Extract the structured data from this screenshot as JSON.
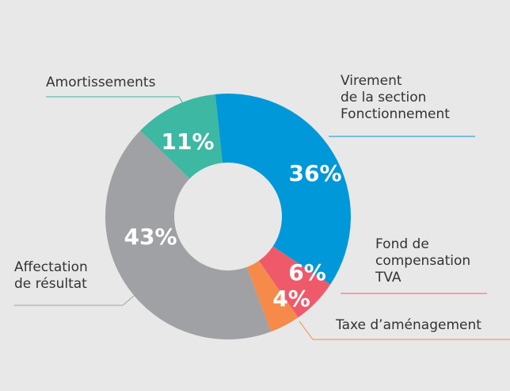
{
  "chart_data": {
    "type": "pie",
    "donut": true,
    "categories": [
      "Virement\nde la section\nFonctionnement",
      "Fond de\ncompensation\nTVA",
      "Taxe d’aménagement",
      "Affectation\nde résultat",
      "Amortissements"
    ],
    "values": [
      36,
      6,
      4,
      43,
      11
    ],
    "value_labels": [
      "36%",
      "6%",
      "4%",
      "43%",
      "11%"
    ],
    "colors": [
      "#0098d8",
      "#ef5a6b",
      "#f58a4b",
      "#a0a1a4",
      "#3db8a2"
    ]
  }
}
